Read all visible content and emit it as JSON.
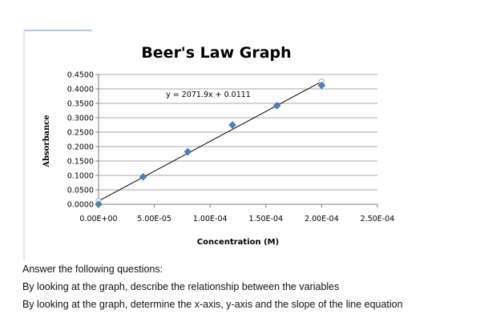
{
  "chart_data": {
    "type": "scatter",
    "title": "Beer's Law Graph",
    "xlabel": "Concentration (M)",
    "ylabel": "Absorbance",
    "xlim": [
      0,
      0.00025
    ],
    "ylim": [
      0,
      0.45
    ],
    "x_ticks": [
      "0.00E+00",
      "5.00E-05",
      "1.00E-04",
      "1.50E-04",
      "2.00E-04",
      "2.50E-04"
    ],
    "x_tick_values": [
      0,
      5e-05,
      0.0001,
      0.00015,
      0.0002,
      0.00025
    ],
    "y_ticks": [
      "0.0000",
      "0.0500",
      "0.1000",
      "0.1500",
      "0.2000",
      "0.2500",
      "0.3000",
      "0.3500",
      "0.4000",
      "0.4500"
    ],
    "y_tick_values": [
      0,
      0.05,
      0.1,
      0.15,
      0.2,
      0.25,
      0.3,
      0.35,
      0.4,
      0.45
    ],
    "grid": true,
    "series": [
      {
        "x": [
          0,
          4e-05,
          8e-05,
          0.00012,
          0.00016,
          0.0002
        ],
        "y": [
          0,
          0.095,
          0.182,
          0.275,
          0.342,
          0.412
        ],
        "color": "#4f81bd"
      }
    ],
    "trendline": {
      "label": "y = 2071.9x + 0.0111",
      "slope": 2071.9,
      "intercept": 0.0111,
      "x_range": [
        0,
        0.0002
      ],
      "color": "#000000"
    }
  },
  "questions": {
    "heading": "Answer the following questions:",
    "items": [
      "By looking at the graph, describe the relationship between the variables",
      "By looking at the graph, determine the x-axis, y-axis and the slope of the line equation"
    ]
  }
}
